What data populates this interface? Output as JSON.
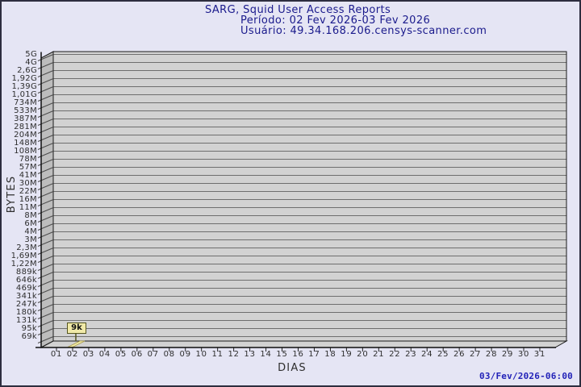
{
  "header": {
    "title": "SARG, Squid User Access Reports",
    "period_line": "Período: 02 Fev 2026-03 Fev 2026",
    "user_line": "Usuário: 49.34.168.206.censys-scanner.com"
  },
  "chart_data": {
    "type": "bar",
    "title": "SARG, Squid User Access Reports",
    "subtitle": "Período: 02 Fev 2026-03 Fev 2026",
    "user": "Usuário: 49.34.168.206.censys-scanner.com",
    "xlabel": "DIAS",
    "ylabel": "BYTES",
    "y_scale": "logarithmic-like byte scale, top to bottom",
    "y_tick_labels_top_to_bottom": [
      "5G",
      "4G",
      "2,6G",
      "1,92G",
      "1,39G",
      "1,01G",
      "734M",
      "533M",
      "387M",
      "281M",
      "204M",
      "148M",
      "108M",
      "78M",
      "57M",
      "41M",
      "30M",
      "22M",
      "16M",
      "11M",
      "8M",
      "6M",
      "4M",
      "3M",
      "2,3M",
      "1,69M",
      "1,22M",
      "889k",
      "646k",
      "469k",
      "341k",
      "247k",
      "180k",
      "131k",
      "95k",
      "69k"
    ],
    "x_categories": [
      "01",
      "02",
      "03",
      "04",
      "05",
      "06",
      "07",
      "08",
      "09",
      "10",
      "11",
      "12",
      "13",
      "14",
      "15",
      "16",
      "17",
      "18",
      "19",
      "20",
      "21",
      "22",
      "23",
      "24",
      "25",
      "26",
      "27",
      "28",
      "29",
      "30",
      "31"
    ],
    "grid": "horizontal",
    "legend": "none",
    "style": "3d-bar",
    "series": [
      {
        "name": "downloaded-bytes-per-day",
        "points": [
          {
            "x": "02",
            "value_label": "9k",
            "value_bytes": 9000
          }
        ]
      }
    ]
  },
  "footer": {
    "generated": "03/Fev/2026-06:00"
  },
  "colors": {
    "background": "#E5E5F4",
    "frame_border": "#2D2D3F",
    "title_text": "#1A1A8C",
    "timestamp_text": "#2222B8",
    "plot_fill": "#D2D2D2",
    "wall_fill": "#BDBDBD",
    "grid_line": "#6E6E6E",
    "axis_text": "#2E2E2E",
    "flag_fill": "#F0E9A8",
    "flag_border": "#55551F"
  }
}
